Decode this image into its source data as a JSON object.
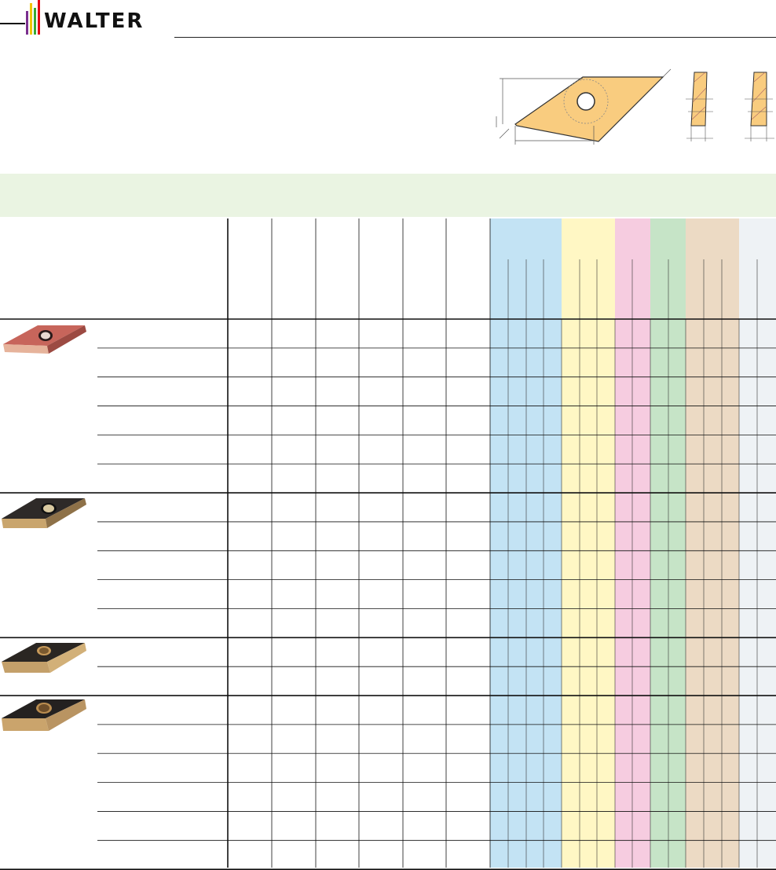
{
  "brand": {
    "name": "WALTER",
    "stripe_colors": [
      "#e30613",
      "#f2c500",
      "#3aaa35",
      "#7a2f8e"
    ]
  },
  "colors": {
    "insert_fill": "#f9cc7f",
    "band": "#eaf4e2",
    "group_fills": [
      "#c3e3f4",
      "#fff7c4",
      "#f6cce0",
      "#c6e4c7",
      "#ecdac4",
      "#eef2f5"
    ]
  },
  "icons": [
    "walter-logo",
    "insert-top-view-drawing",
    "insert-section-view-drawing",
    "insert-photo"
  ],
  "table": {
    "groups": [
      {
        "name": "group-1",
        "insert_icon": "pvd-coated-insert-photo",
        "rows": 6
      },
      {
        "name": "group-2",
        "insert_icon": "black-coated-insert-photo",
        "rows": 5
      },
      {
        "name": "group-3",
        "insert_icon": "black-gold-insert-photo",
        "rows": 2
      },
      {
        "name": "group-4",
        "insert_icon": "black-gold-large-insert-photo",
        "rows": 6
      }
    ],
    "material_groups": [
      {
        "name": "blue",
        "subcolumns": 4
      },
      {
        "name": "yellow",
        "subcolumns": 3
      },
      {
        "name": "pink",
        "subcolumns": 2
      },
      {
        "name": "green",
        "subcolumns": 2
      },
      {
        "name": "beige",
        "subcolumns": 3
      },
      {
        "name": "gray",
        "subcolumns": 2
      }
    ]
  }
}
